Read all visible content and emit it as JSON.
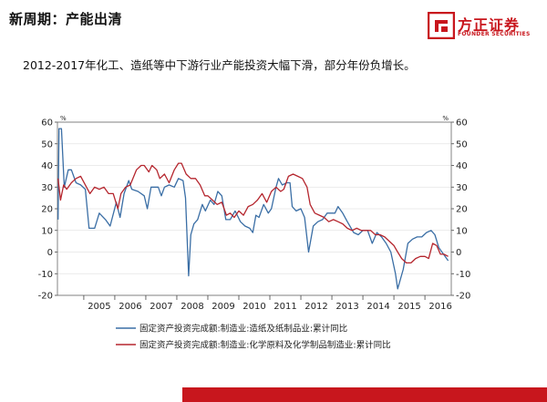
{
  "header": {
    "title": "新周期：产能出清",
    "subtitle": "2012-2017年化工、造纸等中下游行业产能投资大幅下滑，部分年份负增长。"
  },
  "logo": {
    "name_cn": "方正证券",
    "name_en": "FOUNDER SECURITIES",
    "brand_color": "#c8161d"
  },
  "footer": {
    "bar_color": "#c8161d"
  },
  "chart_data": {
    "type": "line",
    "x_tick_labels": [
      "2005",
      "2006",
      "2007",
      "2008",
      "2009",
      "2010",
      "2011",
      "2012",
      "2013",
      "2014",
      "2015",
      "2016"
    ],
    "xlim": [
      2004.15,
      2016.85
    ],
    "ylim": [
      -20,
      60
    ],
    "y_ticks": [
      -20,
      -10,
      0,
      10,
      20,
      30,
      40,
      50,
      60
    ],
    "y_unit_left": "%",
    "y_unit_right": "%",
    "grid": true,
    "legend_position": "bottom",
    "series": [
      {
        "name": "固定资产投资完成额:制造业:造纸及纸制品业:累计同比",
        "color": "#3a6ea5",
        "points": [
          [
            2004.17,
            15
          ],
          [
            2004.2,
            57
          ],
          [
            2004.28,
            57
          ],
          [
            2004.37,
            30
          ],
          [
            2004.5,
            38
          ],
          [
            2004.6,
            38
          ],
          [
            2004.75,
            32
          ],
          [
            2004.9,
            31
          ],
          [
            2005.05,
            29
          ],
          [
            2005.17,
            11
          ],
          [
            2005.35,
            11
          ],
          [
            2005.5,
            18
          ],
          [
            2005.7,
            15
          ],
          [
            2005.85,
            12
          ],
          [
            2006.05,
            23
          ],
          [
            2006.17,
            16
          ],
          [
            2006.3,
            27
          ],
          [
            2006.45,
            33
          ],
          [
            2006.55,
            29
          ],
          [
            2006.75,
            28
          ],
          [
            2006.95,
            26
          ],
          [
            2007.05,
            20
          ],
          [
            2007.17,
            30
          ],
          [
            2007.4,
            30
          ],
          [
            2007.5,
            26
          ],
          [
            2007.6,
            30
          ],
          [
            2007.75,
            31
          ],
          [
            2007.92,
            30
          ],
          [
            2008.05,
            34
          ],
          [
            2008.2,
            33
          ],
          [
            2008.28,
            25
          ],
          [
            2008.38,
            -11
          ],
          [
            2008.45,
            8
          ],
          [
            2008.55,
            13
          ],
          [
            2008.67,
            15
          ],
          [
            2008.82,
            22
          ],
          [
            2008.92,
            19
          ],
          [
            2009.08,
            24
          ],
          [
            2009.2,
            22
          ],
          [
            2009.32,
            28
          ],
          [
            2009.45,
            26
          ],
          [
            2009.58,
            15
          ],
          [
            2009.72,
            15
          ],
          [
            2009.88,
            19
          ],
          [
            2010.05,
            14
          ],
          [
            2010.2,
            12
          ],
          [
            2010.35,
            11
          ],
          [
            2010.45,
            9
          ],
          [
            2010.55,
            17
          ],
          [
            2010.65,
            16
          ],
          [
            2010.8,
            22
          ],
          [
            2010.95,
            18
          ],
          [
            2011.05,
            20
          ],
          [
            2011.2,
            30
          ],
          [
            2011.28,
            34
          ],
          [
            2011.4,
            31
          ],
          [
            2011.55,
            32
          ],
          [
            2011.65,
            32
          ],
          [
            2011.72,
            21
          ],
          [
            2011.85,
            19
          ],
          [
            2012.0,
            20
          ],
          [
            2012.12,
            16
          ],
          [
            2012.25,
            0
          ],
          [
            2012.4,
            12
          ],
          [
            2012.55,
            14
          ],
          [
            2012.7,
            15
          ],
          [
            2012.85,
            18
          ],
          [
            2012.95,
            18
          ],
          [
            2013.1,
            18
          ],
          [
            2013.2,
            21
          ],
          [
            2013.35,
            18
          ],
          [
            2013.5,
            14
          ],
          [
            2013.7,
            9
          ],
          [
            2013.85,
            8
          ],
          [
            2014.0,
            10
          ],
          [
            2014.15,
            10
          ],
          [
            2014.3,
            4
          ],
          [
            2014.45,
            9
          ],
          [
            2014.6,
            7
          ],
          [
            2014.75,
            4
          ],
          [
            2014.9,
            0
          ],
          [
            2015.05,
            -10
          ],
          [
            2015.12,
            -17
          ],
          [
            2015.3,
            -8
          ],
          [
            2015.45,
            4
          ],
          [
            2015.6,
            6
          ],
          [
            2015.75,
            7
          ],
          [
            2015.9,
            7
          ],
          [
            2016.05,
            9
          ],
          [
            2016.2,
            10
          ],
          [
            2016.32,
            8
          ],
          [
            2016.45,
            2
          ],
          [
            2016.55,
            0
          ],
          [
            2016.65,
            -2
          ],
          [
            2016.75,
            -4
          ]
        ]
      },
      {
        "name": "固定资产投资完成额:制造业:化学原料及化学制品制造业:累计同比",
        "color": "#b5262e",
        "points": [
          [
            2004.17,
            34
          ],
          [
            2004.25,
            24
          ],
          [
            2004.35,
            31
          ],
          [
            2004.45,
            29
          ],
          [
            2004.6,
            32
          ],
          [
            2004.75,
            34
          ],
          [
            2004.9,
            35
          ],
          [
            2005.05,
            31
          ],
          [
            2005.2,
            27
          ],
          [
            2005.35,
            30
          ],
          [
            2005.5,
            29
          ],
          [
            2005.65,
            30
          ],
          [
            2005.8,
            27
          ],
          [
            2005.95,
            27
          ],
          [
            2006.1,
            20
          ],
          [
            2006.2,
            27
          ],
          [
            2006.35,
            30
          ],
          [
            2006.5,
            31
          ],
          [
            2006.7,
            38
          ],
          [
            2006.85,
            40
          ],
          [
            2006.95,
            40
          ],
          [
            2007.1,
            37
          ],
          [
            2007.2,
            40
          ],
          [
            2007.35,
            38
          ],
          [
            2007.45,
            34
          ],
          [
            2007.6,
            36
          ],
          [
            2007.75,
            32
          ],
          [
            2007.92,
            38
          ],
          [
            2008.05,
            41
          ],
          [
            2008.15,
            41
          ],
          [
            2008.3,
            36
          ],
          [
            2008.45,
            34
          ],
          [
            2008.6,
            34
          ],
          [
            2008.75,
            31
          ],
          [
            2008.9,
            26
          ],
          [
            2009.0,
            26
          ],
          [
            2009.15,
            24
          ],
          [
            2009.3,
            22
          ],
          [
            2009.45,
            23
          ],
          [
            2009.6,
            17
          ],
          [
            2009.72,
            18
          ],
          [
            2009.85,
            16
          ],
          [
            2010.0,
            19
          ],
          [
            2010.15,
            17
          ],
          [
            2010.3,
            21
          ],
          [
            2010.45,
            22
          ],
          [
            2010.6,
            24
          ],
          [
            2010.75,
            27
          ],
          [
            2010.9,
            23
          ],
          [
            2011.05,
            28
          ],
          [
            2011.2,
            30
          ],
          [
            2011.35,
            28
          ],
          [
            2011.45,
            29
          ],
          [
            2011.6,
            35
          ],
          [
            2011.75,
            36
          ],
          [
            2011.9,
            35
          ],
          [
            2012.05,
            34
          ],
          [
            2012.2,
            30
          ],
          [
            2012.3,
            22
          ],
          [
            2012.45,
            18
          ],
          [
            2012.6,
            17
          ],
          [
            2012.75,
            16
          ],
          [
            2012.9,
            14
          ],
          [
            2013.05,
            15
          ],
          [
            2013.2,
            14
          ],
          [
            2013.35,
            13
          ],
          [
            2013.5,
            11
          ],
          [
            2013.65,
            10
          ],
          [
            2013.8,
            11
          ],
          [
            2013.95,
            10
          ],
          [
            2014.1,
            10
          ],
          [
            2014.25,
            10
          ],
          [
            2014.4,
            8
          ],
          [
            2014.55,
            8
          ],
          [
            2014.7,
            7
          ],
          [
            2014.85,
            5
          ],
          [
            2015.0,
            3
          ],
          [
            2015.12,
            0
          ],
          [
            2015.25,
            -3
          ],
          [
            2015.4,
            -5
          ],
          [
            2015.55,
            -5
          ],
          [
            2015.7,
            -3
          ],
          [
            2015.85,
            -2
          ],
          [
            2016.0,
            -2
          ],
          [
            2016.12,
            -3
          ],
          [
            2016.25,
            4
          ],
          [
            2016.38,
            3
          ],
          [
            2016.5,
            -1
          ],
          [
            2016.62,
            -1
          ],
          [
            2016.75,
            -2
          ]
        ]
      }
    ]
  }
}
